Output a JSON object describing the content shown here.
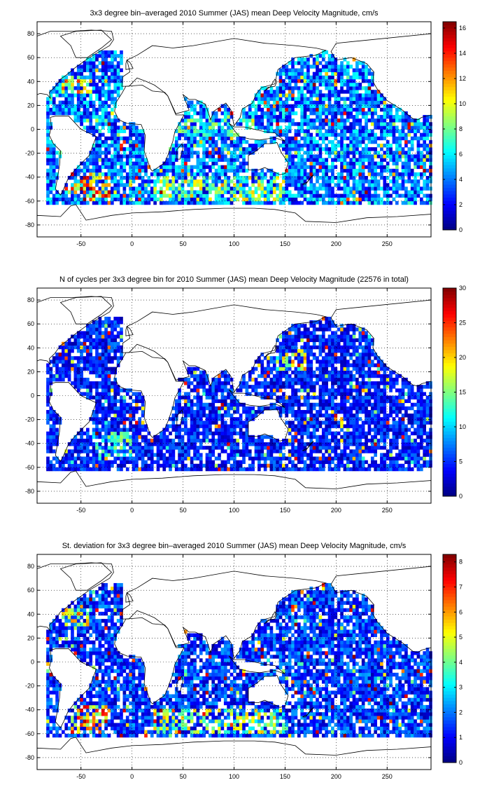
{
  "chart_data": [
    {
      "type": "heatmap",
      "title": "3x3 degree bin–averaged 2010 Summer (JAS) mean Deep Velocity Magnitude, cm/s",
      "xlabel": "",
      "ylabel": "",
      "xlim": [
        -93,
        293
      ],
      "ylim": [
        -90,
        90
      ],
      "x_ticks": [
        -50,
        0,
        50,
        100,
        150,
        200,
        250
      ],
      "y_ticks": [
        80,
        60,
        40,
        20,
        0,
        -20,
        -40,
        -60,
        -80
      ],
      "grid": true,
      "bin_size_deg": 3,
      "colorbar": {
        "min": 0,
        "max": 16.5,
        "ticks": [
          0,
          2,
          4,
          6,
          8,
          10,
          12,
          14,
          16
        ],
        "colormap": "jet"
      },
      "typical_value": 3.5,
      "high_value_regions": [
        {
          "lon": [
            -60,
            -20
          ],
          "lat": [
            -60,
            -35
          ],
          "value": 15
        },
        {
          "lon": [
            20,
            150
          ],
          "lat": [
            -60,
            -38
          ],
          "value": 10
        },
        {
          "lon": [
            -70,
            -40
          ],
          "lat": [
            30,
            45
          ],
          "value": 12
        },
        {
          "lon": [
            40,
            120
          ],
          "lat": [
            -5,
            10
          ],
          "value": 8
        }
      ]
    },
    {
      "type": "heatmap",
      "title": "N of cycles per 3x3 degree bin for 2010 Summer (JAS) mean Deep Velocity Magnitude (22576 in total)",
      "xlabel": "",
      "ylabel": "",
      "xlim": [
        -93,
        293
      ],
      "ylim": [
        -90,
        90
      ],
      "x_ticks": [
        -50,
        0,
        50,
        100,
        150,
        200,
        250
      ],
      "y_ticks": [
        80,
        60,
        40,
        20,
        0,
        -20,
        -40,
        -60,
        -80
      ],
      "grid": true,
      "bin_size_deg": 3,
      "total_cycles": 22576,
      "colorbar": {
        "min": 0,
        "max": 30,
        "ticks": [
          0,
          5,
          10,
          15,
          20,
          25,
          30
        ],
        "colormap": "jet"
      },
      "typical_value": 4,
      "high_value_regions": [
        {
          "lon": [
            140,
            170
          ],
          "lat": [
            20,
            40
          ],
          "value": 20
        },
        {
          "lon": [
            -40,
            0
          ],
          "lat": [
            -50,
            -30
          ],
          "value": 14
        }
      ]
    },
    {
      "type": "heatmap",
      "title": "St. deviation for 3x3 degree bin–averaged 2010 Summer (JAS) mean Deep Velocity Magnitude, cm/s",
      "xlabel": "",
      "ylabel": "",
      "xlim": [
        -93,
        293
      ],
      "ylim": [
        -90,
        90
      ],
      "x_ticks": [
        -50,
        0,
        50,
        100,
        150,
        200,
        250
      ],
      "y_ticks": [
        80,
        60,
        40,
        20,
        0,
        -20,
        -40,
        -60,
        -80
      ],
      "grid": true,
      "bin_size_deg": 3,
      "colorbar": {
        "min": 0,
        "max": 8.3,
        "ticks": [
          0,
          1,
          2,
          3,
          4,
          5,
          6,
          7,
          8
        ],
        "colormap": "jet"
      },
      "typical_value": 1.3,
      "high_value_regions": [
        {
          "lon": [
            -60,
            -20
          ],
          "lat": [
            -60,
            -35
          ],
          "value": 7
        },
        {
          "lon": [
            20,
            150
          ],
          "lat": [
            -60,
            -38
          ],
          "value": 5
        },
        {
          "lon": [
            -70,
            -40
          ],
          "lat": [
            30,
            45
          ],
          "value": 6
        }
      ]
    }
  ]
}
